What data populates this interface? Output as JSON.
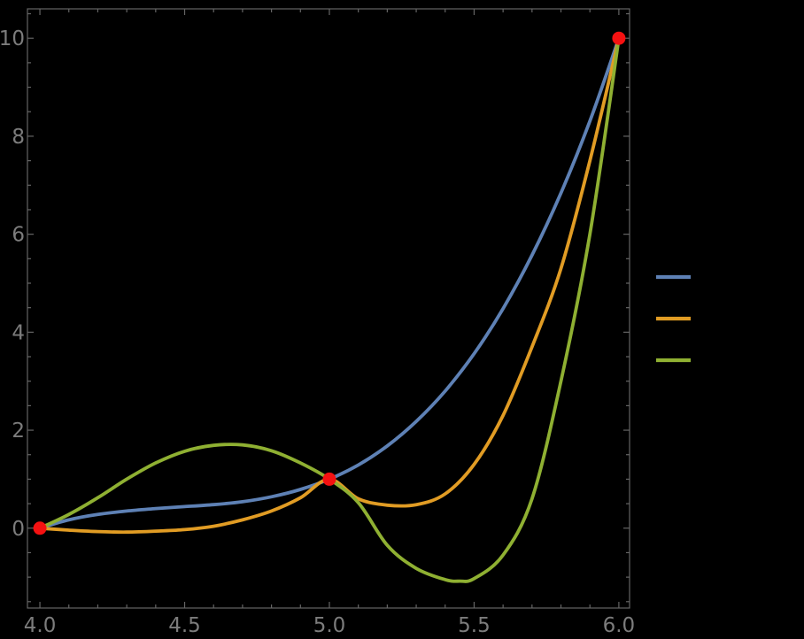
{
  "figure": {
    "background": "#000000",
    "frame_color": "#656565",
    "tick_label_color": "#7c7c7c"
  },
  "chart_data": {
    "type": "line",
    "title": "",
    "xlabel": "",
    "ylabel": "",
    "grid": false,
    "xlim": [
      3.957,
      6.037
    ],
    "ylim": [
      -1.63,
      10.6
    ],
    "x_ticks": {
      "major": [
        4.0,
        4.5,
        5.0,
        5.5,
        6.0
      ],
      "labels": [
        "4.0",
        "4.5",
        "5.0",
        "5.5",
        "6.0"
      ],
      "minor_step": 0.1
    },
    "y_ticks": {
      "major": [
        0,
        2,
        4,
        6,
        8,
        10
      ],
      "labels": [
        "0",
        "2",
        "4",
        "6",
        "8",
        "10"
      ],
      "minor_step": 0.5
    },
    "data_points": {
      "color": "#f51111",
      "points": [
        [
          4,
          0
        ],
        [
          5,
          1
        ],
        [
          6,
          10
        ]
      ]
    },
    "series": [
      {
        "name": "series-blue",
        "color": "#5e81b5",
        "x": [
          4.0,
          4.1,
          4.2,
          4.3,
          4.4,
          4.5,
          4.6,
          4.7,
          4.8,
          4.9,
          5.0,
          5.1,
          5.2,
          5.3,
          5.4,
          5.5,
          5.6,
          5.7,
          5.8,
          5.9,
          6.0
        ],
        "y": [
          0,
          0.17,
          0.28,
          0.35,
          0.4,
          0.44,
          0.48,
          0.54,
          0.64,
          0.79,
          1.0,
          1.29,
          1.68,
          2.18,
          2.8,
          3.56,
          4.48,
          5.57,
          6.84,
          8.31,
          10.0
        ]
      },
      {
        "name": "series-orange",
        "color": "#e19c24",
        "x": [
          4.0,
          4.1,
          4.2,
          4.3,
          4.4,
          4.5,
          4.6,
          4.7,
          4.8,
          4.9,
          5.0,
          5.1,
          5.2,
          5.3,
          5.4,
          5.5,
          5.6,
          5.7,
          5.8,
          5.9,
          6.0
        ],
        "y": [
          0,
          -0.04,
          -0.07,
          -0.08,
          -0.06,
          -0.03,
          0.04,
          0.17,
          0.35,
          0.62,
          1.0,
          0.6,
          0.47,
          0.48,
          0.7,
          1.3,
          2.3,
          3.7,
          5.3,
          7.5,
          10.0
        ]
      },
      {
        "name": "series-green",
        "color": "#8fb032",
        "x": [
          4.0,
          4.1,
          4.2,
          4.3,
          4.4,
          4.5,
          4.6,
          4.7,
          4.8,
          4.9,
          5.0,
          5.1,
          5.2,
          5.3,
          5.4,
          5.45,
          5.5,
          5.6,
          5.7,
          5.8,
          5.9,
          6.0
        ],
        "y": [
          0,
          0.28,
          0.62,
          1.0,
          1.33,
          1.57,
          1.69,
          1.7,
          1.58,
          1.33,
          1.0,
          0.52,
          -0.35,
          -0.82,
          -1.05,
          -1.08,
          -1.03,
          -0.55,
          0.6,
          3.0,
          6.0,
          10.0
        ]
      }
    ],
    "legend": {
      "position": "outside-right",
      "labels_visible": false,
      "entries": [
        {
          "name": "legend-swatch-blue",
          "color": "#5e81b5"
        },
        {
          "name": "legend-swatch-orange",
          "color": "#e19c24"
        },
        {
          "name": "legend-swatch-green",
          "color": "#8fb032"
        }
      ]
    }
  }
}
